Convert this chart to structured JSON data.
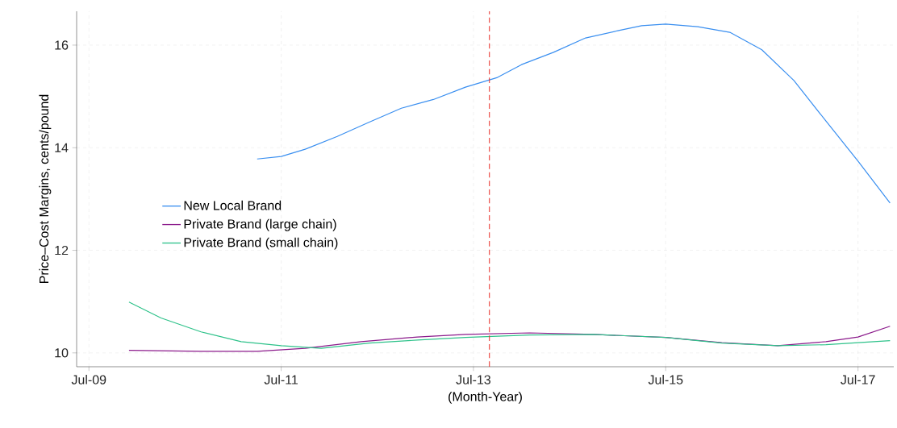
{
  "chart_data": {
    "type": "line",
    "xlabel": "(Month-Year)",
    "ylabel": "Price–Cost Margins, cents/pound",
    "xlim": [
      "2009-05-15",
      "2017-11-15"
    ],
    "ylim": [
      9.73,
      16.66
    ],
    "xticks": [
      {
        "value": "2009-07",
        "label": "Jul-09"
      },
      {
        "value": "2011-07",
        "label": "Jul-11"
      },
      {
        "value": "2013-07",
        "label": "Jul-13"
      },
      {
        "value": "2015-07",
        "label": "Jul-15"
      },
      {
        "value": "2017-07",
        "label": "Jul-17"
      }
    ],
    "yticks": [
      10,
      12,
      14,
      16
    ],
    "grid": true,
    "legend": "left",
    "ref_lines": [
      {
        "axis": "x",
        "value": "2013-09",
        "color": "#e8302a",
        "line_style": "dashed"
      }
    ],
    "series": [
      {
        "name": "New Local Brand",
        "color": "#3a8ff0",
        "x": [
          "2011-04",
          "2011-07",
          "2011-10",
          "2012-02",
          "2012-06",
          "2012-10",
          "2013-02",
          "2013-06",
          "2013-10",
          "2014-01",
          "2014-05",
          "2014-09",
          "2015-01",
          "2015-04",
          "2015-07",
          "2015-11",
          "2016-03",
          "2016-07",
          "2016-11",
          "2017-03",
          "2017-07",
          "2017-11"
        ],
        "values": [
          13.78,
          13.83,
          13.97,
          14.22,
          14.5,
          14.77,
          14.94,
          15.18,
          15.37,
          15.62,
          15.86,
          16.14,
          16.28,
          16.38,
          16.41,
          16.36,
          16.25,
          15.91,
          15.31,
          14.52,
          13.74,
          12.92
        ]
      },
      {
        "name": "Private Brand (large chain)",
        "color": "#8b1a8b",
        "x": [
          "2009-12",
          "2010-09",
          "2011-04",
          "2011-10",
          "2012-05",
          "2012-12",
          "2013-06",
          "2014-02",
          "2014-10",
          "2015-07",
          "2016-02",
          "2016-09",
          "2017-03",
          "2017-07",
          "2017-11"
        ],
        "values": [
          10.05,
          10.03,
          10.03,
          10.09,
          10.22,
          10.31,
          10.36,
          10.39,
          10.36,
          10.3,
          10.2,
          10.14,
          10.22,
          10.31,
          10.52
        ]
      },
      {
        "name": "Private Brand (small chain)",
        "color": "#2ec28a",
        "x": [
          "2009-12",
          "2010-04",
          "2010-09",
          "2011-02",
          "2011-07",
          "2011-12",
          "2012-06",
          "2012-12",
          "2013-06",
          "2014-02",
          "2014-10",
          "2015-07",
          "2016-02",
          "2016-09",
          "2017-03",
          "2017-11"
        ],
        "values": [
          10.99,
          10.68,
          10.41,
          10.22,
          10.14,
          10.09,
          10.19,
          10.25,
          10.3,
          10.35,
          10.36,
          10.3,
          10.19,
          10.14,
          10.16,
          10.24
        ]
      }
    ]
  }
}
